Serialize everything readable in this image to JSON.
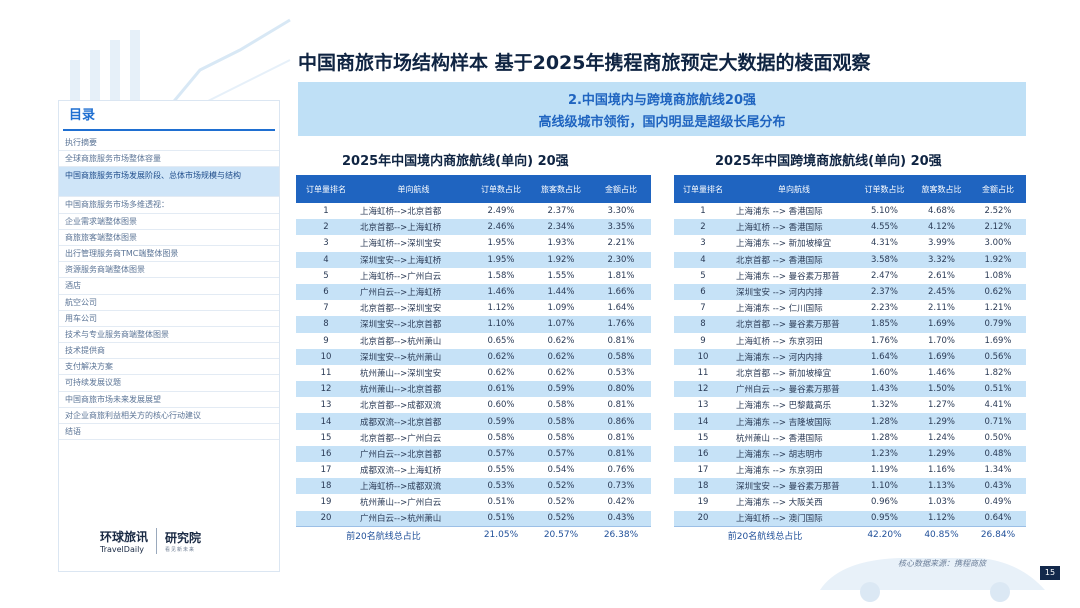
{
  "colors": {
    "accent": "#1f64c0",
    "banner_bg": "#bfe0f6",
    "row_alt": "#c6e2f7",
    "title": "#0f2442"
  },
  "header": {
    "title": "中国商旅市场结构样本 基于2025年携程商旅预定大数据的棱面观察"
  },
  "banner": {
    "line1": "2.中国境内与跨境商旅航线20强",
    "line2": "高线级城市领衔，国内明显是超级长尾分布"
  },
  "sidebar": {
    "title": "目录",
    "items": [
      {
        "label": "执行摘要"
      },
      {
        "label": "全球商旅服务市场整体容量"
      },
      {
        "label": "中国商旅服务市场发展阶段、总体市场规模与结构"
      },
      {
        "label": "中国商旅服务市场多维透视："
      },
      {
        "label": "企业需求端整体图景"
      },
      {
        "label": "商旅旅客端整体图景"
      },
      {
        "label": "出行管理服务商TMC端整体图景"
      },
      {
        "label": "资源服务商端整体图景"
      },
      {
        "label": "酒店"
      },
      {
        "label": "航空公司"
      },
      {
        "label": "用车公司"
      },
      {
        "label": "技术与专业服务商端整体图景"
      },
      {
        "label": "技术提供商"
      },
      {
        "label": "支付解决方案"
      },
      {
        "label": "可持续发展议题"
      },
      {
        "label": "中国商旅市场未来发展展望"
      },
      {
        "label": "对企业商旅利益相关方的核心行动建议"
      },
      {
        "label": "结语"
      }
    ]
  },
  "logo": {
    "brand_cn": "环球旅讯",
    "brand_en": "TravelDaily",
    "institute": "研究院",
    "institute_sub": "看见新未来"
  },
  "domestic": {
    "title": "2025年中国境内商旅航线(单向) 20强",
    "headers": [
      "订单量排名",
      "单向航线",
      "订单数占比",
      "旅客数占比",
      "金额占比"
    ],
    "rows": [
      [
        "1",
        "上海虹桥-->北京首都",
        "2.49%",
        "2.37%",
        "3.30%"
      ],
      [
        "2",
        "北京首都-->上海虹桥",
        "2.46%",
        "2.34%",
        "3.35%"
      ],
      [
        "3",
        "上海虹桥-->深圳宝安",
        "1.95%",
        "1.93%",
        "2.21%"
      ],
      [
        "4",
        "深圳宝安-->上海虹桥",
        "1.95%",
        "1.92%",
        "2.30%"
      ],
      [
        "5",
        "上海虹桥-->广州白云",
        "1.58%",
        "1.55%",
        "1.81%"
      ],
      [
        "6",
        "广州白云-->上海虹桥",
        "1.46%",
        "1.44%",
        "1.66%"
      ],
      [
        "7",
        "北京首都-->深圳宝安",
        "1.12%",
        "1.09%",
        "1.64%"
      ],
      [
        "8",
        "深圳宝安-->北京首都",
        "1.10%",
        "1.07%",
        "1.76%"
      ],
      [
        "9",
        "北京首都-->杭州萧山",
        "0.65%",
        "0.62%",
        "0.81%"
      ],
      [
        "10",
        "深圳宝安-->杭州萧山",
        "0.62%",
        "0.62%",
        "0.58%"
      ],
      [
        "11",
        "杭州萧山-->深圳宝安",
        "0.62%",
        "0.62%",
        "0.53%"
      ],
      [
        "12",
        "杭州萧山-->北京首都",
        "0.61%",
        "0.59%",
        "0.80%"
      ],
      [
        "13",
        "北京首都-->成都双流",
        "0.60%",
        "0.58%",
        "0.81%"
      ],
      [
        "14",
        "成都双流-->北京首都",
        "0.59%",
        "0.58%",
        "0.86%"
      ],
      [
        "15",
        "北京首都-->广州白云",
        "0.58%",
        "0.58%",
        "0.81%"
      ],
      [
        "16",
        "广州白云-->北京首都",
        "0.57%",
        "0.57%",
        "0.81%"
      ],
      [
        "17",
        "成都双流-->上海虹桥",
        "0.55%",
        "0.54%",
        "0.76%"
      ],
      [
        "18",
        "上海虹桥-->成都双流",
        "0.53%",
        "0.52%",
        "0.73%"
      ],
      [
        "19",
        "杭州萧山-->广州白云",
        "0.51%",
        "0.52%",
        "0.42%"
      ],
      [
        "20",
        "广州白云-->杭州萧山",
        "0.51%",
        "0.52%",
        "0.43%"
      ]
    ],
    "total": [
      "前20名航线总占比",
      "21.05%",
      "20.57%",
      "26.38%"
    ]
  },
  "crossborder": {
    "title": "2025年中国跨境商旅航线(单向) 20强",
    "headers": [
      "订单量排名",
      "单向航线",
      "订单数占比",
      "旅客数占比",
      "金额占比"
    ],
    "rows": [
      [
        "1",
        "上海浦东 --> 香港国际",
        "5.10%",
        "4.68%",
        "2.52%"
      ],
      [
        "2",
        "上海虹桥 --> 香港国际",
        "4.55%",
        "4.12%",
        "2.12%"
      ],
      [
        "3",
        "上海浦东 --> 新加坡樟宜",
        "4.31%",
        "3.99%",
        "3.00%"
      ],
      [
        "4",
        "北京首都 --> 香港国际",
        "3.58%",
        "3.32%",
        "1.92%"
      ],
      [
        "5",
        "上海浦东 --> 曼谷素万那普",
        "2.47%",
        "2.61%",
        "1.08%"
      ],
      [
        "6",
        "深圳宝安 --> 河内内排",
        "2.37%",
        "2.45%",
        "0.62%"
      ],
      [
        "7",
        "上海浦东 --> 仁川国际",
        "2.23%",
        "2.11%",
        "1.21%"
      ],
      [
        "8",
        "北京首都 --> 曼谷素万那普",
        "1.85%",
        "1.69%",
        "0.79%"
      ],
      [
        "9",
        "上海虹桥 --> 东京羽田",
        "1.76%",
        "1.70%",
        "1.69%"
      ],
      [
        "10",
        "上海浦东 --> 河内内排",
        "1.64%",
        "1.69%",
        "0.56%"
      ],
      [
        "11",
        "北京首都 --> 新加坡樟宜",
        "1.60%",
        "1.46%",
        "1.82%"
      ],
      [
        "12",
        "广州白云 --> 曼谷素万那普",
        "1.43%",
        "1.50%",
        "0.51%"
      ],
      [
        "13",
        "上海浦东 --> 巴黎戴高乐",
        "1.32%",
        "1.27%",
        "4.41%"
      ],
      [
        "14",
        "上海浦东 --> 吉隆坡国际",
        "1.28%",
        "1.29%",
        "0.71%"
      ],
      [
        "15",
        "杭州萧山 --> 香港国际",
        "1.28%",
        "1.24%",
        "0.50%"
      ],
      [
        "16",
        "上海浦东 --> 胡志明市",
        "1.23%",
        "1.29%",
        "0.48%"
      ],
      [
        "17",
        "上海浦东 --> 东京羽田",
        "1.19%",
        "1.16%",
        "1.34%"
      ],
      [
        "18",
        "深圳宝安 --> 曼谷素万那普",
        "1.10%",
        "1.13%",
        "0.43%"
      ],
      [
        "19",
        "上海浦东 --> 大阪关西",
        "0.96%",
        "1.03%",
        "0.49%"
      ],
      [
        "20",
        "上海虹桥 --> 澳门国际",
        "0.95%",
        "1.12%",
        "0.64%"
      ]
    ],
    "total": [
      "前20名航线总占比",
      "42.20%",
      "40.85%",
      "26.84%"
    ]
  },
  "footer": {
    "source": "核心数据来源：携程商旅",
    "page": "15"
  }
}
